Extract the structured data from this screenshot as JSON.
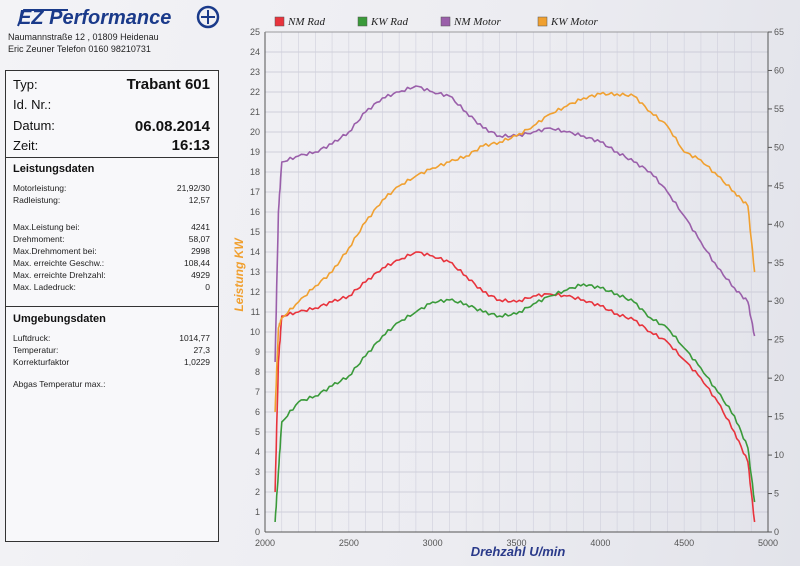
{
  "header": {
    "logo_text": "EZ Performance",
    "address_line1": "Naumannstraße 12 , 01809 Heidenau",
    "address_line2": "Eric Zeuner  Telefon 0160 98210731"
  },
  "vehicle": {
    "type_label": "Typ:",
    "type_value": "Trabant 601",
    "id_label": "Id. Nr.:",
    "date_label": "Datum:",
    "date_value": "06.08.2014",
    "time_label": "Zeit:",
    "time_value": "16:13"
  },
  "performance": {
    "title": "Leistungsdaten",
    "rows": [
      {
        "label": "Motorleistung:",
        "value": "21,92/30"
      },
      {
        "label": "Radleistung:",
        "value": "12,57"
      },
      {
        "label": "Max.Leistung bei:",
        "value": "4241"
      },
      {
        "label": "Drehmoment:",
        "value": "58,07"
      },
      {
        "label": "Max.Drehmoment bei:",
        "value": "2998"
      },
      {
        "label": "Max. erreichte Geschw.:",
        "value": "108,44"
      },
      {
        "label": "Max. erreichte Drehzahl:",
        "value": "4929"
      },
      {
        "label": "Max. Ladedruck:",
        "value": "0"
      }
    ]
  },
  "environment": {
    "title": "Umgebungsdaten",
    "rows": [
      {
        "label": "Luftdruck:",
        "value": "1014,77"
      },
      {
        "label": "Temperatur:",
        "value": "27,3"
      },
      {
        "label": "Korrekturfaktor",
        "value": "1,0229"
      }
    ],
    "exhaust_label": "Abgas Temperatur max.:"
  },
  "chart_data": {
    "type": "line",
    "xlabel": "Drehzahl U/min",
    "ylabel": "Leistung KW",
    "xlim": [
      2000,
      5000
    ],
    "xticks": [
      2000,
      2500,
      3000,
      3500,
      4000,
      4500,
      5000
    ],
    "ylim_left": [
      0,
      25
    ],
    "ylim_right": [
      0,
      65
    ],
    "right_axis_ticks": [
      0,
      5,
      10,
      15,
      20,
      25,
      30,
      35,
      40,
      45,
      50,
      55,
      60,
      65
    ],
    "grid": true,
    "legend_position": "top",
    "series": [
      {
        "name": "NM Rad",
        "color": "#e8333c",
        "axis": "left",
        "x": [
          2060,
          2080,
          2100,
          2200,
          2300,
          2400,
          2500,
          2600,
          2700,
          2800,
          2900,
          3000,
          3100,
          3200,
          3300,
          3400,
          3500,
          3600,
          3700,
          3800,
          3900,
          4000,
          4100,
          4200,
          4300,
          4400,
          4500,
          4600,
          4700,
          4800,
          4880,
          4920
        ],
        "values": [
          2.0,
          8.5,
          10.8,
          11.0,
          11.2,
          11.5,
          11.8,
          12.5,
          13.2,
          13.6,
          14.0,
          13.8,
          13.5,
          12.8,
          12.0,
          11.6,
          11.5,
          11.8,
          11.9,
          11.8,
          11.6,
          11.3,
          10.9,
          10.6,
          10.0,
          9.5,
          8.6,
          7.7,
          6.5,
          5.0,
          3.5,
          0.5
        ]
      },
      {
        "name": "KW Rad",
        "color": "#3a9a3a",
        "axis": "left",
        "x": [
          2060,
          2080,
          2100,
          2200,
          2300,
          2400,
          2500,
          2600,
          2700,
          2800,
          2900,
          3000,
          3100,
          3200,
          3300,
          3400,
          3500,
          3600,
          3700,
          3800,
          3900,
          4000,
          4100,
          4200,
          4300,
          4400,
          4500,
          4600,
          4700,
          4800,
          4880,
          4920
        ],
        "values": [
          0.5,
          3.0,
          5.5,
          6.5,
          6.8,
          7.3,
          7.8,
          8.8,
          9.8,
          10.5,
          11.0,
          11.5,
          11.6,
          11.4,
          11.0,
          10.8,
          10.9,
          11.4,
          11.8,
          12.1,
          12.4,
          12.2,
          11.9,
          11.5,
          10.7,
          10.2,
          9.2,
          8.2,
          7.0,
          5.8,
          4.2,
          1.5
        ]
      },
      {
        "name": "NM Motor",
        "color": "#9a5faa",
        "axis": "left",
        "x": [
          2060,
          2080,
          2100,
          2200,
          2300,
          2400,
          2500,
          2600,
          2700,
          2800,
          2900,
          3000,
          3100,
          3200,
          3300,
          3400,
          3500,
          3600,
          3700,
          3800,
          3900,
          4000,
          4100,
          4200,
          4300,
          4400,
          4500,
          4600,
          4700,
          4800,
          4880,
          4920
        ],
        "values": [
          8.5,
          16.0,
          18.5,
          18.8,
          19.0,
          19.4,
          20.0,
          21.0,
          21.7,
          22.0,
          22.3,
          22.0,
          21.8,
          21.0,
          20.2,
          19.8,
          19.8,
          20.0,
          20.2,
          20.0,
          19.8,
          19.5,
          19.0,
          18.5,
          18.0,
          17.0,
          15.8,
          14.5,
          13.2,
          12.2,
          11.5,
          9.8
        ]
      },
      {
        "name": "KW Motor",
        "color": "#f0a030",
        "axis": "left",
        "x": [
          2060,
          2080,
          2100,
          2200,
          2300,
          2400,
          2500,
          2600,
          2700,
          2800,
          2900,
          3000,
          3100,
          3200,
          3300,
          3400,
          3500,
          3600,
          3700,
          3800,
          3900,
          4000,
          4100,
          4200,
          4300,
          4400,
          4500,
          4600,
          4700,
          4800,
          4880,
          4920
        ],
        "values": [
          6.0,
          10.2,
          10.7,
          11.5,
          12.3,
          13.0,
          14.2,
          15.5,
          16.6,
          17.3,
          17.8,
          18.2,
          18.5,
          18.8,
          19.3,
          19.5,
          19.8,
          20.3,
          20.9,
          21.3,
          21.7,
          21.9,
          21.9,
          21.8,
          21.0,
          20.3,
          19.0,
          18.6,
          17.8,
          17.0,
          16.3,
          13.0
        ]
      }
    ]
  }
}
